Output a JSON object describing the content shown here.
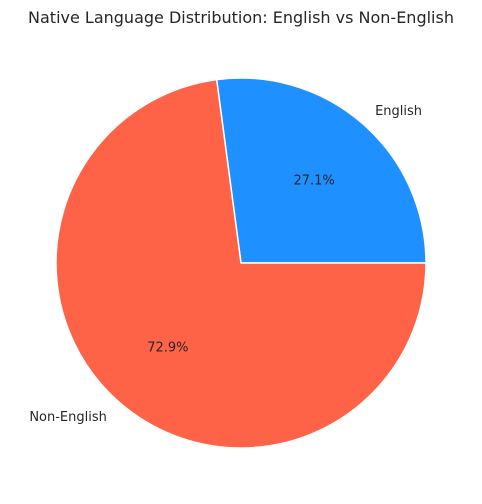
{
  "chart_data": {
    "type": "pie",
    "title": "Native Language Distribution: English vs Non-English",
    "categories": [
      "English",
      "Non-English"
    ],
    "values": [
      27.1,
      72.9
    ],
    "percent_labels": [
      "27.1%",
      "72.9%"
    ],
    "colors": [
      "#1E90FF",
      "#FF6347"
    ],
    "start_angle_deg": 0,
    "direction": "counterclockwise",
    "legend": "none"
  }
}
